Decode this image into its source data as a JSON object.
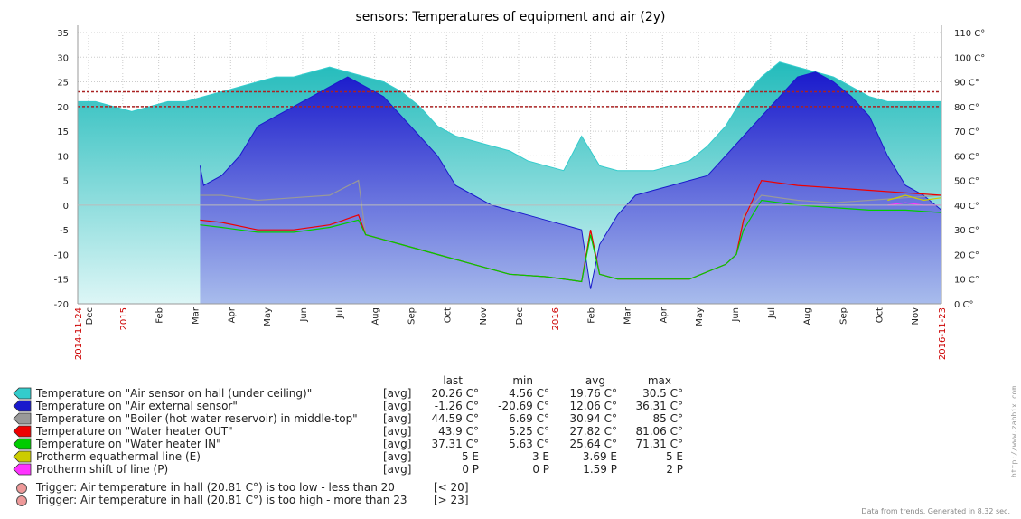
{
  "colors": {
    "hall": "#33cccc",
    "external": "#1a1acc",
    "boiler": "#999999",
    "heater_out": "#ee0000",
    "heater_in": "#00cc00",
    "equithermal": "#cccc00",
    "shift": "#ff33ff",
    "trigger": "#ee9999"
  },
  "chart_data": {
    "type": "area",
    "title": "sensors: Temperatures of equipment and air (2y)",
    "y_left": {
      "min": -20,
      "max": 35,
      "ticks": [
        "35",
        "30",
        "25",
        "20",
        "15",
        "10",
        "5",
        "0",
        "-5",
        "-10",
        "-15",
        "-20"
      ]
    },
    "y_right": {
      "min": 0,
      "max": 110,
      "unit": "C°",
      "ticks": [
        "110 C°",
        "100 C°",
        "90 C°",
        "80 C°",
        "70 C°",
        "60 C°",
        "50 C°",
        "40 C°",
        "30 C°",
        "20 C°",
        "10 C°",
        "0 C°"
      ]
    },
    "x_labels": [
      {
        "text": "2014-11-24",
        "red": true
      },
      {
        "text": "Dec",
        "red": false
      },
      {
        "text": "2015",
        "red": true
      },
      {
        "text": "Feb",
        "red": false
      },
      {
        "text": "Mar",
        "red": false
      },
      {
        "text": "Apr",
        "red": false
      },
      {
        "text": "May",
        "red": false
      },
      {
        "text": "Jun",
        "red": false
      },
      {
        "text": "Jul",
        "red": false
      },
      {
        "text": "Aug",
        "red": false
      },
      {
        "text": "Sep",
        "red": false
      },
      {
        "text": "Oct",
        "red": false
      },
      {
        "text": "Nov",
        "red": false
      },
      {
        "text": "Dec",
        "red": false
      },
      {
        "text": "2016",
        "red": true
      },
      {
        "text": "Feb",
        "red": false
      },
      {
        "text": "Mar",
        "red": false
      },
      {
        "text": "Apr",
        "red": false
      },
      {
        "text": "May",
        "red": false
      },
      {
        "text": "Jun",
        "red": false
      },
      {
        "text": "Jul",
        "red": false
      },
      {
        "text": "Aug",
        "red": false
      },
      {
        "text": "Sep",
        "red": false
      },
      {
        "text": "Oct",
        "red": false
      },
      {
        "text": "Nov",
        "red": false
      },
      {
        "text": "2016-11-23",
        "red": true
      }
    ],
    "x_months": [
      0,
      0.3,
      1.25,
      2.25,
      3.25,
      4.25,
      5.25,
      6.25,
      7.25,
      8.25,
      9.25,
      10.25,
      11.25,
      12.25,
      13.25,
      14.25,
      15.25,
      16.25,
      17.25,
      18.25,
      19.25,
      20.25,
      21.25,
      22.25,
      23.25,
      24
    ],
    "trigger_lines": [
      20,
      23
    ],
    "series": [
      {
        "name": "Temperature on \"Air sensor on hall (under ceiling)\"",
        "axis": "left",
        "style": "area",
        "x": [
          0,
          0.5,
          1,
          1.5,
          2,
          2.5,
          3,
          3.5,
          4,
          4.5,
          5,
          5.5,
          6,
          6.5,
          7,
          7.5,
          8,
          8.5,
          9,
          9.5,
          10,
          10.5,
          11,
          11.5,
          12,
          12.5,
          13,
          13.5,
          14,
          14.5,
          15,
          15.5,
          16,
          16.5,
          17,
          17.5,
          18,
          18.5,
          19,
          19.5,
          20,
          20.5,
          21,
          21.5,
          22,
          22.5,
          23,
          23.5,
          24
        ],
        "y": [
          21,
          21,
          20,
          19,
          20,
          21,
          21,
          22,
          23,
          24,
          25,
          26,
          26,
          27,
          28,
          27,
          26,
          25,
          23,
          20,
          16,
          14,
          13,
          12,
          11,
          9,
          8,
          7,
          14,
          8,
          7,
          7,
          7,
          8,
          9,
          12,
          16,
          22,
          26,
          29,
          28,
          27,
          26,
          24,
          22,
          21,
          21,
          21,
          21
        ]
      },
      {
        "name": "Temperature on \"Air external sensor\"",
        "axis": "left",
        "style": "area",
        "x": [
          3.4,
          3.5,
          4,
          4.5,
          5,
          5.5,
          6,
          6.5,
          7,
          7.5,
          8,
          8.5,
          9,
          9.5,
          10,
          10.5,
          11,
          11.5,
          12,
          12.5,
          13,
          13.5,
          14,
          14.25,
          14.5,
          15,
          15.5,
          16,
          16.5,
          17,
          17.5,
          18,
          18.5,
          19,
          19.5,
          20,
          20.5,
          21,
          21.5,
          22,
          22.5,
          23,
          23.5,
          24
        ],
        "y": [
          8,
          4,
          6,
          10,
          16,
          18,
          20,
          22,
          24,
          26,
          24,
          22,
          18,
          14,
          10,
          4,
          2,
          0,
          -1,
          -2,
          -3,
          -4,
          -5,
          -17,
          -8,
          -2,
          2,
          3,
          4,
          5,
          6,
          10,
          14,
          18,
          22,
          26,
          27,
          25,
          22,
          18,
          10,
          4,
          2,
          -1
        ]
      },
      {
        "name": "Temperature on \"Boiler (hot water reservoir) in middle-top\"",
        "axis": "right",
        "style": "line",
        "x": [
          3.4,
          4,
          5,
          6,
          7,
          7.8,
          8,
          8.5,
          9,
          10,
          11,
          12,
          13,
          13.5,
          14,
          14.25,
          14.5,
          15,
          16,
          17,
          18,
          18.3,
          18.5,
          19,
          20,
          21,
          22,
          23,
          24
        ],
        "y": [
          44,
          44,
          42,
          43,
          44,
          50,
          28,
          26,
          24,
          20,
          16,
          12,
          11,
          10,
          9,
          30,
          12,
          10,
          10,
          10,
          16,
          20,
          36,
          44,
          42,
          41,
          42,
          43,
          44
        ]
      },
      {
        "name": "Temperature on \"Water heater OUT\"",
        "axis": "right",
        "style": "line",
        "x": [
          3.4,
          4,
          5,
          6,
          7,
          7.8,
          8,
          8.5,
          9,
          10,
          11,
          12,
          13,
          13.5,
          14,
          14.25,
          14.5,
          15,
          16,
          17,
          18,
          18.3,
          18.5,
          19,
          20,
          21,
          22,
          23,
          24
        ],
        "y": [
          34,
          33,
          30,
          30,
          32,
          36,
          28,
          26,
          24,
          20,
          16,
          12,
          11,
          10,
          9,
          30,
          12,
          10,
          10,
          10,
          16,
          20,
          34,
          50,
          48,
          47,
          46,
          45,
          44
        ]
      },
      {
        "name": "Temperature on \"Water heater IN\"",
        "axis": "right",
        "style": "line",
        "x": [
          3.4,
          4,
          5,
          6,
          7,
          7.8,
          8,
          8.5,
          9,
          10,
          11,
          12,
          13,
          13.5,
          14,
          14.25,
          14.5,
          15,
          16,
          17,
          18,
          18.3,
          18.5,
          19,
          20,
          21,
          22,
          23,
          24
        ],
        "y": [
          32,
          31,
          29,
          29,
          31,
          34,
          28,
          26,
          24,
          20,
          16,
          12,
          11,
          10,
          9,
          28,
          12,
          10,
          10,
          10,
          16,
          20,
          30,
          42,
          40,
          39,
          38,
          38,
          37
        ]
      },
      {
        "name": "Protherm equathermal line (E)",
        "axis": "right",
        "style": "line",
        "x": [
          22.5,
          23,
          23.5,
          24
        ],
        "y": [
          42,
          44,
          42,
          43
        ]
      },
      {
        "name": "Protherm shift of line (P)",
        "axis": "right",
        "style": "line",
        "x": [
          22.5,
          23,
          23.5,
          24
        ],
        "y": [
          40,
          41,
          40,
          40
        ]
      }
    ]
  },
  "legend": {
    "headers": {
      "last": "last",
      "min": "min",
      "avg": "avg",
      "max": "max"
    },
    "items": [
      {
        "label": "Temperature on \"Air sensor on hall (under ceiling)\"",
        "fn": "[avg]",
        "last": "20.26 C°",
        "min": "4.56 C°",
        "avg": "19.76 C°",
        "max": "30.5 C°",
        "color_key": "hall"
      },
      {
        "label": "Temperature on \"Air external sensor\"",
        "fn": "[avg]",
        "last": "-1.26 C°",
        "min": "-20.69 C°",
        "avg": "12.06 C°",
        "max": "36.31 C°",
        "color_key": "external"
      },
      {
        "label": "Temperature on \"Boiler (hot water reservoir) in middle-top\"",
        "fn": "[avg]",
        "last": "44.59 C°",
        "min": "6.69 C°",
        "avg": "30.94 C°",
        "max": "85 C°",
        "color_key": "boiler"
      },
      {
        "label": "Temperature on \"Water heater OUT\"",
        "fn": "[avg]",
        "last": "43.9 C°",
        "min": "5.25 C°",
        "avg": "27.82 C°",
        "max": "81.06 C°",
        "color_key": "heater_out"
      },
      {
        "label": "Temperature on \"Water heater IN\"",
        "fn": "[avg]",
        "last": "37.31 C°",
        "min": "5.63 C°",
        "avg": "25.64 C°",
        "max": "71.31 C°",
        "color_key": "heater_in"
      },
      {
        "label": "Protherm equathermal line (E)",
        "fn": "[avg]",
        "last": "5 E",
        "min": "3 E",
        "avg": "3.69 E",
        "max": "5 E",
        "color_key": "equithermal"
      },
      {
        "label": "Protherm shift of line (P)",
        "fn": "[avg]",
        "last": "0 P",
        "min": "0 P",
        "avg": "1.59 P",
        "max": "2 P",
        "color_key": "shift"
      }
    ],
    "triggers": [
      {
        "label": "Trigger: Air temperature in hall (20.81 C°) is too low - less than 20",
        "cond": "[< 20]"
      },
      {
        "label": "Trigger: Air temperature in hall (20.81 C°) is too high - more than 23",
        "cond": "[> 23]"
      }
    ]
  },
  "footer": "Data from trends. Generated in 8.32 sec.",
  "watermark": "http://www.zabbix.com"
}
